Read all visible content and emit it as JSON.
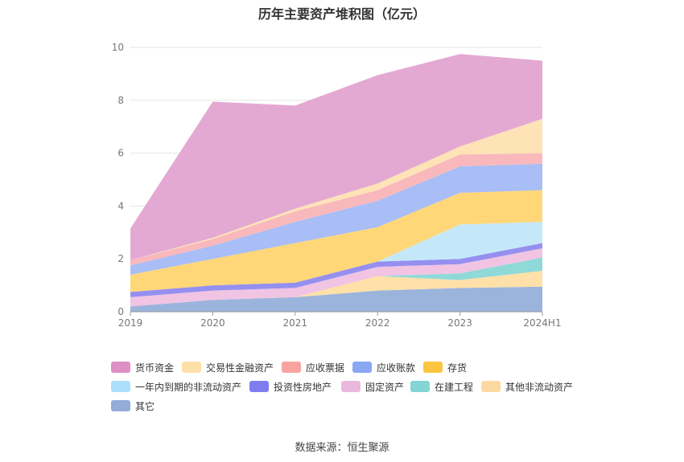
{
  "chart_data": {
    "type": "area",
    "stacked": true,
    "title": "历年主要资产堆积图（亿元）",
    "categories": [
      "2019",
      "2020",
      "2021",
      "2022",
      "2023",
      "2024H1"
    ],
    "ylim": [
      0,
      10
    ],
    "yticks": [
      0,
      2,
      4,
      6,
      8,
      10
    ],
    "grid": true,
    "legend_position": "bottom",
    "series": [
      {
        "name": "其它",
        "color": "#9bb4dc",
        "values": [
          0.2,
          0.45,
          0.55,
          0.8,
          0.9,
          0.95
        ]
      },
      {
        "name": "其他非流动资产",
        "color": "#ffe0a8",
        "values": [
          0.0,
          0.0,
          0.0,
          0.55,
          0.3,
          0.6
        ]
      },
      {
        "name": "在建工程",
        "color": "#8fd9d9",
        "values": [
          0.0,
          0.0,
          0.0,
          0.0,
          0.25,
          0.5
        ]
      },
      {
        "name": "固定资产",
        "color": "#f0c4e2",
        "values": [
          0.35,
          0.35,
          0.35,
          0.35,
          0.35,
          0.35
        ]
      },
      {
        "name": "投资性房地产",
        "color": "#9590f0",
        "values": [
          0.2,
          0.2,
          0.2,
          0.2,
          0.2,
          0.2
        ]
      },
      {
        "name": "一年内到期的非流动资产",
        "color": "#c4e8fa",
        "values": [
          0.0,
          0.0,
          0.0,
          0.0,
          1.3,
          0.8
        ]
      },
      {
        "name": "存货",
        "color": "#ffd778",
        "values": [
          0.65,
          1.0,
          1.5,
          1.3,
          1.2,
          1.2
        ]
      },
      {
        "name": "应收账款",
        "color": "#a9bdf6",
        "values": [
          0.35,
          0.5,
          0.8,
          1.0,
          1.0,
          1.0
        ]
      },
      {
        "name": "应收票据",
        "color": "#f9b8bc",
        "values": [
          0.2,
          0.25,
          0.4,
          0.4,
          0.45,
          0.4
        ]
      },
      {
        "name": "交易性金融资产",
        "color": "#fde3b6",
        "values": [
          0.0,
          0.05,
          0.1,
          0.25,
          0.3,
          1.3
        ]
      },
      {
        "name": "货币资金",
        "color": "#e4a9d2",
        "values": [
          1.2,
          5.15,
          3.9,
          4.1,
          3.5,
          2.2
        ]
      }
    ]
  },
  "legend": [
    {
      "name": "货币资金",
      "color": "#de8fc4"
    },
    {
      "name": "交易性金融资产",
      "color": "#fde0a8"
    },
    {
      "name": "应收票据",
      "color": "#f7a4a0"
    },
    {
      "name": "应收账款",
      "color": "#8aa7f2"
    },
    {
      "name": "存货",
      "color": "#fbc540"
    },
    {
      "name": "一年内到期的非流动资产",
      "color": "#abdffb"
    },
    {
      "name": "投资性房地产",
      "color": "#7f7cf0"
    },
    {
      "name": "固定资产",
      "color": "#eab8dd"
    },
    {
      "name": "在建工程",
      "color": "#84d5d5"
    },
    {
      "name": "其他非流动资产",
      "color": "#fdd9a2"
    },
    {
      "name": "其它",
      "color": "#93acd8"
    }
  ],
  "source": "数据来源：恒生聚源"
}
